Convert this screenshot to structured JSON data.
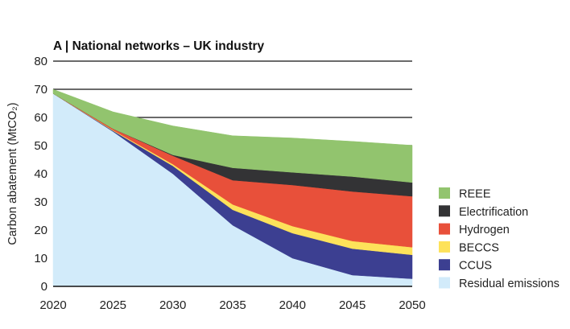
{
  "chart_data": {
    "type": "area",
    "stacked": true,
    "title": "A | National networks – UK industry",
    "xlabel": "",
    "ylabel": "Carbon abatement (MtCO₂)",
    "x": [
      2020,
      2025,
      2030,
      2035,
      2040,
      2045,
      2050
    ],
    "xticks": [
      "2020",
      "2025",
      "2030",
      "2035",
      "2040",
      "2045",
      "2050"
    ],
    "ylim": [
      0,
      80
    ],
    "yticks": [
      "0",
      "10",
      "20",
      "30",
      "40",
      "50",
      "60",
      "70",
      "80"
    ],
    "grid": "horizontal",
    "legend_position": "right",
    "series": [
      {
        "name": "Residual emissions",
        "color": "#d2ebfa",
        "values": [
          68.5,
          55.0,
          40.0,
          21.7,
          10.0,
          4.0,
          2.7
        ]
      },
      {
        "name": "CCUS",
        "color": "#3c3f91",
        "values": [
          0,
          0.3,
          2.8,
          5.5,
          8.9,
          9.4,
          8.5
        ]
      },
      {
        "name": "BECCS",
        "color": "#fde25a",
        "values": [
          0,
          0.2,
          0.6,
          1.9,
          2.5,
          2.7,
          2.7
        ]
      },
      {
        "name": "Hydrogen",
        "color": "#e8503a",
        "values": [
          0,
          0.5,
          3.0,
          8.6,
          14.6,
          17.6,
          18.1
        ]
      },
      {
        "name": "Electrification",
        "color": "#333335",
        "values": [
          0,
          0,
          0.3,
          4.4,
          4.5,
          5.3,
          4.9
        ]
      },
      {
        "name": "REEE",
        "color": "#92c46e",
        "values": [
          1.5,
          6.0,
          10.3,
          11.4,
          12.2,
          12.5,
          13.2
        ]
      }
    ],
    "legend_order": [
      "REEE",
      "Electrification",
      "Hydrogen",
      "BECCS",
      "CCUS",
      "Residual emissions"
    ]
  }
}
